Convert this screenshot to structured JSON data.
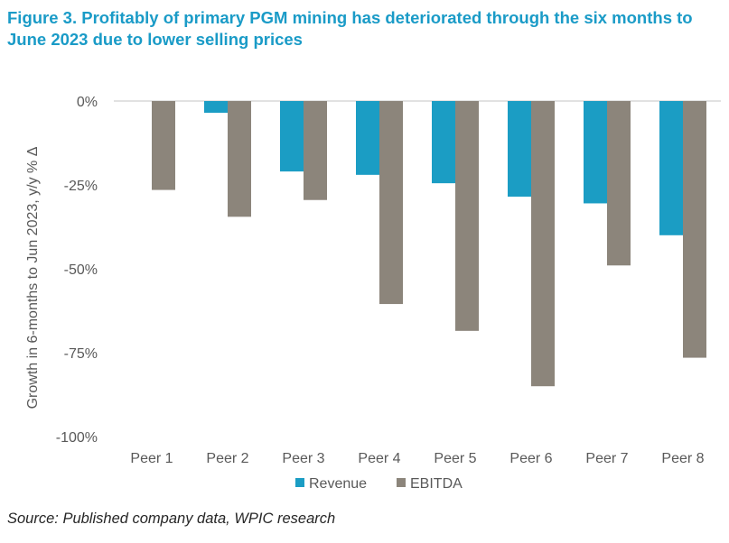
{
  "title": "Figure 3. Profitably of primary PGM mining has deteriorated through the six months to June 2023 due to lower selling prices",
  "source": "Source: Published company data, WPIC research",
  "colors": {
    "revenue": "#1b9dc4",
    "ebitda": "#8c857b",
    "title": "#1a9bc7",
    "gridline": "#d9d9d9",
    "text": "#595959"
  },
  "chart_data": {
    "type": "bar",
    "ylabel": "Growth in 6-months to Jun 2023, y/y % Δ",
    "ylim": [
      -100,
      0
    ],
    "yticks": [
      0,
      -25,
      -50,
      -75,
      -100
    ],
    "ytick_labels": [
      "0%",
      "-25%",
      "-50%",
      "-75%",
      "-100%"
    ],
    "categories": [
      "Peer 1",
      "Peer 2",
      "Peer 3",
      "Peer 4",
      "Peer 5",
      "Peer 6",
      "Peer 7",
      "Peer 8"
    ],
    "series": [
      {
        "name": "Revenue",
        "values": [
          0,
          -3.5,
          -21,
          -22,
          -24.5,
          -28.5,
          -30.5,
          -40
        ]
      },
      {
        "name": "EBITDA",
        "values": [
          -26.5,
          -34.5,
          -29.5,
          -60.5,
          -68.5,
          -85,
          -49,
          -76.5
        ]
      }
    ],
    "legend": "bottom",
    "grid": false
  }
}
